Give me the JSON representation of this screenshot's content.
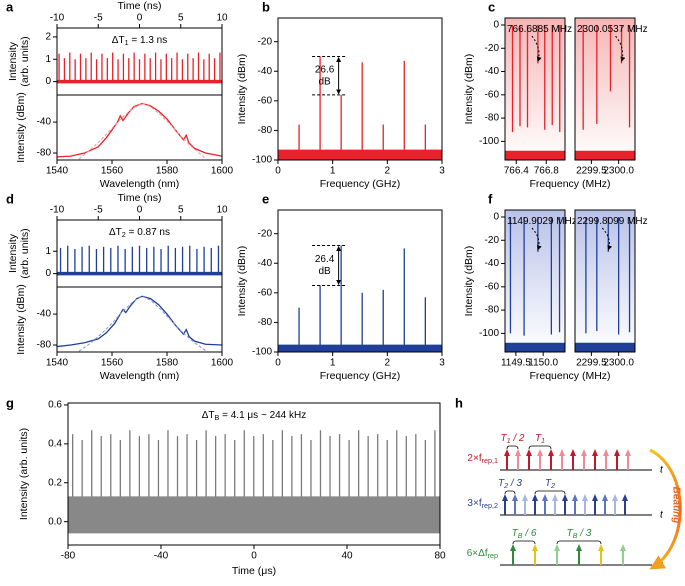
{
  "chart_data": [
    {
      "type": "stem",
      "label": "a",
      "xlabel": "Time (ns)",
      "ylabel": [
        "Intensity",
        "(arb. units)"
      ],
      "xlim": [
        -10,
        10
      ],
      "xticks": [
        -10,
        -5,
        0,
        5,
        10
      ],
      "ylim": [
        -0.6,
        2.4
      ],
      "yticks": [
        0,
        1,
        2
      ],
      "annotation": [
        "ΔT",
        "1",
        " = 1.3 ns"
      ],
      "series": [
        {
          "color": "#e8212a",
          "x": [
            -9.75,
            -9.1,
            -8.45,
            -7.8,
            -7.15,
            -6.5,
            -5.85,
            -5.2,
            -4.55,
            -3.9,
            -3.25,
            -2.6,
            -1.95,
            -1.3,
            -0.65,
            0,
            0.65,
            1.3,
            1.95,
            2.6,
            3.25,
            3.9,
            4.55,
            5.2,
            5.85,
            6.5,
            7.15,
            7.8,
            8.45,
            9.1,
            9.75
          ],
          "values": [
            1.25,
            1.05,
            1.3,
            1.0,
            1.25,
            1.05,
            1.3,
            1.0,
            1.25,
            1.05,
            1.3,
            1.0,
            1.25,
            1.05,
            1.3,
            1.0,
            1.25,
            1.05,
            1.3,
            1.0,
            1.25,
            1.05,
            1.3,
            1.0,
            1.25,
            1.05,
            1.3,
            1.0,
            1.25,
            1.05,
            1.3
          ]
        },
        {
          "color": "#e8212a",
          "x": [
            -10,
            10
          ],
          "values": [
            0.08,
            0.08
          ],
          "lower": [
            -0.08,
            -0.08
          ]
        }
      ]
    },
    {
      "type": "line",
      "ylabel": "Intensity (dBm)",
      "xlabel": "Wavelength (nm)",
      "xlim": [
        1540,
        1600
      ],
      "xticks": [
        1540,
        1560,
        1580,
        1600
      ],
      "ylim": [
        -89,
        -5
      ],
      "yticks": [
        -80,
        -40
      ],
      "series": [
        {
          "color": "#e8212a",
          "x": [
            1540,
            1545,
            1550,
            1555,
            1558,
            1560,
            1562,
            1563,
            1564,
            1566,
            1568,
            1571,
            1574,
            1577,
            1580,
            1583,
            1586,
            1587,
            1588,
            1590,
            1594,
            1600
          ],
          "values": [
            -85,
            -84,
            -80,
            -72,
            -60,
            -50,
            -40,
            -32,
            -38,
            -28,
            -20,
            -16,
            -19,
            -26,
            -36,
            -50,
            -63,
            -57,
            -67,
            -74,
            -80,
            -84
          ]
        },
        {
          "color": "#e99a9a",
          "dash": true,
          "x": [
            1548,
            1552,
            1556,
            1560,
            1564,
            1568,
            1571,
            1574,
            1578,
            1582,
            1586,
            1590,
            1594
          ],
          "values": [
            -88,
            -76,
            -63,
            -48,
            -33,
            -21,
            -16,
            -20,
            -32,
            -46,
            -62,
            -75,
            -87
          ]
        }
      ]
    },
    {
      "type": "stem",
      "label": "b",
      "xlabel": "Frequency (GHz)",
      "ylabel": "Intensity (dBm)",
      "xlim": [
        0,
        3
      ],
      "xticks": [
        0,
        1,
        2,
        3
      ],
      "ylim": [
        -100,
        -4
      ],
      "yticks": [
        -100,
        -80,
        -60,
        -40,
        -20
      ],
      "annotation": [
        "26.6",
        "dB"
      ],
      "series": [
        {
          "color": "#e8212a",
          "x": [
            0.385,
            0.77,
            1.155,
            1.54,
            1.925,
            2.31,
            2.695
          ],
          "values": [
            -76,
            -30,
            -56,
            -34,
            -76,
            -33,
            -76
          ]
        },
        {
          "color": "#e8212a",
          "x": [
            0,
            3
          ],
          "values": [
            -93,
            -93
          ],
          "lower": [
            -100,
            -100
          ]
        }
      ]
    },
    {
      "type": "stem",
      "label": "c",
      "xlabel": "Frequency (MHz)",
      "ylabel": "Intensity (dBm)",
      "background": "#f5b5b5",
      "xlim": [
        766.25,
        767.05
      ],
      "xticks": [
        766.4,
        766.8
      ],
      "ylim": [
        -116,
        6
      ],
      "yticks": [
        -100,
        -80,
        -60,
        -40,
        -20,
        0
      ],
      "annotation": [
        "766.6885 MHz"
      ],
      "series": [
        {
          "color": "#e8212a",
          "x": [
            766.35,
            766.45,
            766.55,
            766.6885,
            766.78,
            766.88,
            766.98
          ],
          "values": [
            -92,
            -87,
            -88,
            -33,
            -90,
            -86,
            -92
          ]
        },
        {
          "color": "#e8212a",
          "x": [
            766.25,
            767.05
          ],
          "values": [
            -108,
            -108
          ],
          "lower": [
            -116,
            -116
          ]
        }
      ]
    },
    {
      "type": "stem",
      "background": "#f5b5b5",
      "xlim": [
        2299.2,
        2300.3
      ],
      "xticks": [
        2299.5,
        {
          "value": 2300,
          "label": "2300.0"
        }
      ],
      "ylim": [
        -116,
        6
      ],
      "annotation": [
        "2300.0537 MHz"
      ],
      "series": [
        {
          "color": "#e8212a",
          "x": [
            2299.35,
            2299.6,
            2299.85,
            2300.0537,
            2300.2
          ],
          "values": [
            -90,
            -85,
            -57,
            -33,
            -88
          ]
        },
        {
          "color": "#e8212a",
          "x": [
            2299.2,
            2300.3
          ],
          "values": [
            -108,
            -108
          ],
          "lower": [
            -116,
            -116
          ]
        }
      ]
    },
    {
      "type": "stem",
      "label": "d",
      "xlabel": "Time (ns)",
      "ylabel": [
        "Intensity",
        "(arb. units)"
      ],
      "xlim": [
        -10,
        10
      ],
      "xticks": [
        -10,
        -5,
        0,
        5,
        10
      ],
      "ylim": [
        -0.6,
        2.4
      ],
      "yticks": [
        0,
        1
      ],
      "annotation": [
        "ΔT",
        "2",
        " = 0.87 ns"
      ],
      "series": [
        {
          "color": "#1f3f99",
          "x": [
            -9.57,
            -8.7,
            -7.83,
            -6.96,
            -6.09,
            -5.22,
            -4.35,
            -3.48,
            -2.61,
            -1.74,
            -0.87,
            0,
            0.87,
            1.74,
            2.61,
            3.48,
            4.35,
            5.22,
            6.09,
            6.96,
            7.83,
            8.7,
            9.57
          ],
          "values": [
            1.15,
            1.25,
            1.1,
            1.2,
            1.25,
            1.1,
            1.2,
            1.15,
            1.25,
            1.1,
            1.2,
            1.25,
            1.15,
            1.2,
            1.1,
            1.25,
            1.15,
            1.2,
            1.25,
            1.1,
            1.2,
            1.15,
            1.25
          ]
        },
        {
          "color": "#1f3f99",
          "x": [
            -10,
            10
          ],
          "values": [
            0.08,
            0.08
          ],
          "lower": [
            -0.08,
            -0.08
          ]
        }
      ]
    },
    {
      "type": "line",
      "ylabel": "Intensity (dBm)",
      "xlabel": "Wavelength (nm)",
      "xlim": [
        1540,
        1600
      ],
      "xticks": [
        1540,
        1560,
        1580,
        1600
      ],
      "ylim": [
        -89,
        -5
      ],
      "yticks": [
        -80,
        -40
      ],
      "series": [
        {
          "color": "#1f3f99",
          "x": [
            1540,
            1545,
            1550,
            1555,
            1558,
            1561,
            1563,
            1564,
            1565,
            1567,
            1569,
            1571,
            1574,
            1577,
            1580,
            1583,
            1586,
            1587,
            1588,
            1590,
            1594,
            1600
          ],
          "values": [
            -82,
            -80,
            -77,
            -72,
            -64,
            -52,
            -40,
            -34,
            -38,
            -28,
            -20,
            -17,
            -20,
            -28,
            -40,
            -54,
            -66,
            -60,
            -69,
            -75,
            -79,
            -80
          ]
        },
        {
          "color": "#8795cc",
          "dash": true,
          "x": [
            1548,
            1552,
            1556,
            1560,
            1564,
            1568,
            1571,
            1574,
            1578,
            1582,
            1586,
            1590,
            1594
          ],
          "values": [
            -88,
            -78,
            -66,
            -52,
            -36,
            -23,
            -17,
            -22,
            -35,
            -50,
            -65,
            -77,
            -87
          ]
        }
      ]
    },
    {
      "type": "stem",
      "label": "e",
      "xlabel": "Frequency (GHz)",
      "ylabel": "Intensity (dBm)",
      "xlim": [
        0,
        3
      ],
      "xticks": [
        0,
        1,
        2,
        3
      ],
      "ylim": [
        -100,
        -4
      ],
      "yticks": [
        -100,
        -80,
        -60,
        -40,
        -20
      ],
      "annotation": [
        "26.4",
        "dB"
      ],
      "series": [
        {
          "color": "#1f3f99",
          "x": [
            0.385,
            0.77,
            1.155,
            1.54,
            1.925,
            2.31,
            2.695
          ],
          "values": [
            -70,
            -55,
            -28,
            -60,
            -58,
            -30,
            -63
          ]
        },
        {
          "color": "#1f3f99",
          "x": [
            0,
            3
          ],
          "values": [
            -95,
            -95
          ],
          "lower": [
            -100,
            -100
          ]
        }
      ]
    },
    {
      "type": "stem",
      "label": "f",
      "xlabel": "Frequency (MHz)",
      "ylabel": "Intensity (dBm)",
      "background": "#b9c2e8",
      "xlim": [
        1149.3,
        1150.4
      ],
      "xticks": [
        1149.5,
        {
          "value": 1150,
          "label": "1150.0"
        }
      ],
      "ylim": [
        -116,
        6
      ],
      "yticks": [
        -100,
        -80,
        -60,
        -40,
        -20,
        0
      ],
      "annotation": [
        "1149.9029 MHz"
      ],
      "series": [
        {
          "color": "#1f3f99",
          "x": [
            1149.4,
            1149.65,
            1149.9029,
            1150.15,
            1150.3
          ],
          "values": [
            -100,
            -102,
            -30,
            -101,
            -99
          ]
        },
        {
          "color": "#1f3f99",
          "x": [
            1149.3,
            1150.4
          ],
          "values": [
            -108,
            -108
          ],
          "lower": [
            -116,
            -116
          ]
        }
      ]
    },
    {
      "type": "stem",
      "background": "#b9c2e8",
      "xlim": [
        2299.2,
        2300.3
      ],
      "xticks": [
        2299.5,
        {
          "value": 2300,
          "label": "2300.0"
        }
      ],
      "ylim": [
        -116,
        6
      ],
      "annotation": [
        "2299.8099 MHz"
      ],
      "series": [
        {
          "color": "#1f3f99",
          "x": [
            2299.4,
            2299.6,
            2299.8099,
            2300.0,
            2300.2
          ],
          "values": [
            -100,
            -98,
            -30,
            -101,
            -99
          ]
        },
        {
          "color": "#1f3f99",
          "x": [
            2299.2,
            2300.3
          ],
          "values": [
            -108,
            -108
          ],
          "lower": [
            -116,
            -116
          ]
        }
      ]
    },
    {
      "type": "stem",
      "label": "g",
      "xlabel": "Time (μs)",
      "ylabel": "Intensity (arb. units)",
      "xlim": [
        -80,
        80
      ],
      "xticks": [
        -80,
        -40,
        0,
        40,
        80
      ],
      "ylim": [
        -0.12,
        0.61
      ],
      "yticks": [
        {
          "value": 0,
          "label": "0.0"
        },
        0.2,
        0.4,
        0.6
      ],
      "annotation": [
        "ΔT",
        "B",
        " = 4.1 μs ~ 244 kHz"
      ],
      "series": [
        {
          "color": "#7a7a7a",
          "x": [
            -78,
            -73.9,
            -69.8,
            -65.7,
            -61.6,
            -57.5,
            -53.4,
            -49.3,
            -45.2,
            -41.1,
            -37,
            -32.9,
            -28.8,
            -24.7,
            -20.6,
            -16.5,
            -12.4,
            -8.3,
            -4.2,
            -0.1,
            4,
            8.1,
            12.2,
            16.3,
            20.4,
            24.5,
            28.6,
            32.7,
            36.8,
            40.9,
            45,
            49.1,
            53.2,
            57.3,
            61.4,
            65.5,
            69.6,
            73.7,
            77.8
          ],
          "values": [
            0.45,
            0.42,
            0.47,
            0.44,
            0.45,
            0.42,
            0.47,
            0.44,
            0.45,
            0.42,
            0.47,
            0.44,
            0.45,
            0.42,
            0.47,
            0.44,
            0.45,
            0.42,
            0.47,
            0.44,
            0.45,
            0.42,
            0.47,
            0.44,
            0.45,
            0.42,
            0.47,
            0.44,
            0.45,
            0.42,
            0.47,
            0.44,
            0.45,
            0.42,
            0.47,
            0.44,
            0.45,
            0.42,
            0.47
          ]
        },
        {
          "color": "#888888",
          "x": [
            -80,
            80
          ],
          "values": [
            0.13,
            0.13
          ],
          "lower": [
            -0.06,
            -0.06
          ]
        }
      ]
    }
  ],
  "diagram": {
    "label": "h",
    "axis": "t",
    "beating": "Beating",
    "rows": [
      {
        "name": [
          "2×f",
          "rep,1"
        ],
        "brackets": [
          [
            "T",
            "1",
            " / 2"
          ],
          [
            "T",
            "1"
          ]
        ]
      },
      {
        "name": [
          "3×f",
          "rep,2"
        ],
        "brackets": [
          [
            "T",
            "2",
            " / 3"
          ],
          [
            "T",
            "2"
          ]
        ]
      },
      {
        "name": [
          "6×Δf",
          "rep"
        ],
        "brackets": [
          [
            "T",
            "B",
            " / 6"
          ],
          [
            "T",
            "B",
            " / 3"
          ]
        ]
      }
    ]
  }
}
